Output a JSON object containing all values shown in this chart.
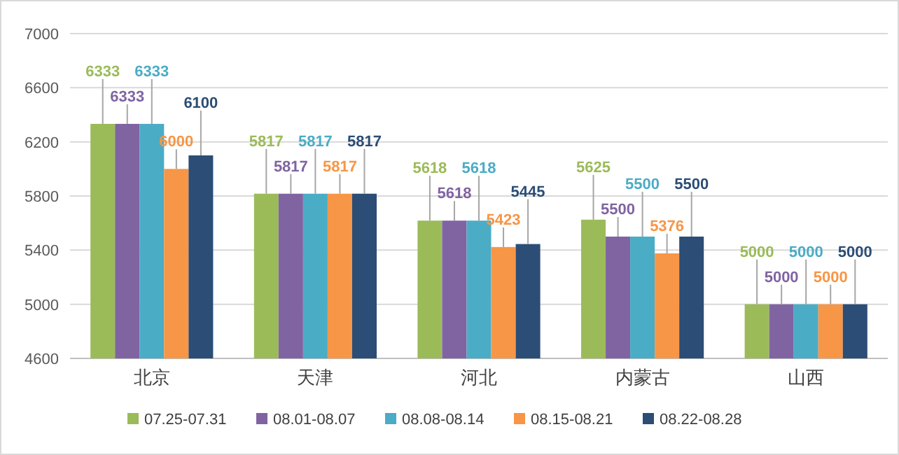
{
  "chart_data": {
    "type": "bar",
    "categories": [
      "北京",
      "天津",
      "河北",
      "内蒙古",
      "山西"
    ],
    "series": [
      {
        "name": "07.25-07.31",
        "color": "#9bbb59",
        "values": [
          6333,
          5817,
          5618,
          5625,
          5000
        ]
      },
      {
        "name": "08.01-08.07",
        "color": "#8064a2",
        "values": [
          6333,
          5817,
          5618,
          5500,
          5000
        ]
      },
      {
        "name": "08.08-08.14",
        "color": "#4bacc6",
        "values": [
          6333,
          5817,
          5618,
          5500,
          5000
        ]
      },
      {
        "name": "08.15-08.21",
        "color": "#f79646",
        "values": [
          6000,
          5817,
          5423,
          5376,
          5000
        ]
      },
      {
        "name": "08.22-08.28",
        "color": "#2c4d75",
        "values": [
          6100,
          5817,
          5445,
          5500,
          5000
        ]
      }
    ],
    "ylim": [
      4600,
      7000
    ],
    "yticks": [
      4600,
      5000,
      5400,
      5800,
      6200,
      6600,
      7000
    ],
    "grid": "y",
    "legend": "bottom",
    "data_labels": true
  }
}
